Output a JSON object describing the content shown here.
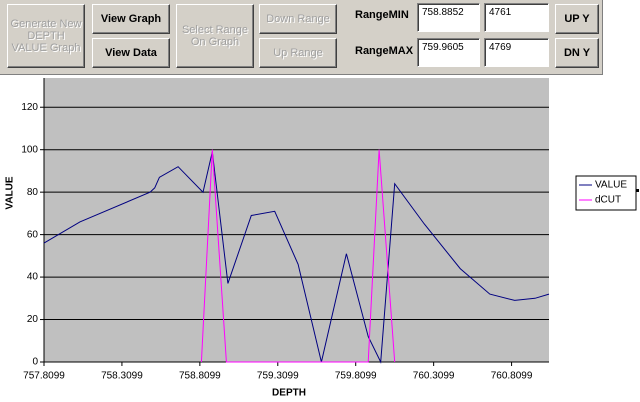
{
  "toolbar": {
    "generate": "Generate New DEPTH VALUE Graph",
    "view_graph": "View Graph",
    "view_data": "View Data",
    "select_range": "Select Range On Graph",
    "down_range": "Down  Range",
    "up_range": "Up  Range",
    "range_min_label": "RangeMIN",
    "range_max_label": "RangeMAX",
    "range_min_depth": "758.8852",
    "range_min_index": "4761",
    "range_max_depth": "759.9605",
    "range_max_index": "4769",
    "up_y": "UP Y",
    "dn_y": "DN Y"
  },
  "chart_data": {
    "type": "line",
    "x_label": "DEPTH",
    "y_label": "VALUE",
    "xlim": [
      757.8099,
      761.05
    ],
    "xticks": [
      757.8099,
      758.3099,
      758.8099,
      759.3099,
      759.8099,
      760.3099,
      760.8099
    ],
    "ylim": [
      0,
      130
    ],
    "yticks": [
      0,
      20,
      40,
      60,
      80,
      100,
      120
    ],
    "grid": true,
    "legend": "right",
    "background": "#c0c0c0",
    "series": [
      {
        "name": "VALUE",
        "color": "#000080",
        "x": [
          757.81,
          758.04,
          758.49,
          758.52,
          758.55,
          758.67,
          758.83,
          758.89,
          758.99,
          759.14,
          759.29,
          759.44,
          759.59,
          759.75,
          759.89,
          759.97,
          760.06,
          760.25,
          760.48,
          760.67,
          760.83,
          760.96,
          761.05
        ],
        "values": [
          56,
          66,
          80,
          82,
          87,
          92,
          80,
          99,
          37,
          69,
          71,
          46,
          0,
          51,
          12,
          0,
          84,
          65,
          44,
          32,
          29,
          30,
          32
        ]
      },
      {
        "name": "dCUT",
        "color": "#ff00ff",
        "x": [
          758.82,
          758.89,
          758.98,
          759.89,
          759.96,
          760.06
        ],
        "values": [
          0,
          100,
          0,
          0,
          100,
          0
        ]
      }
    ]
  }
}
